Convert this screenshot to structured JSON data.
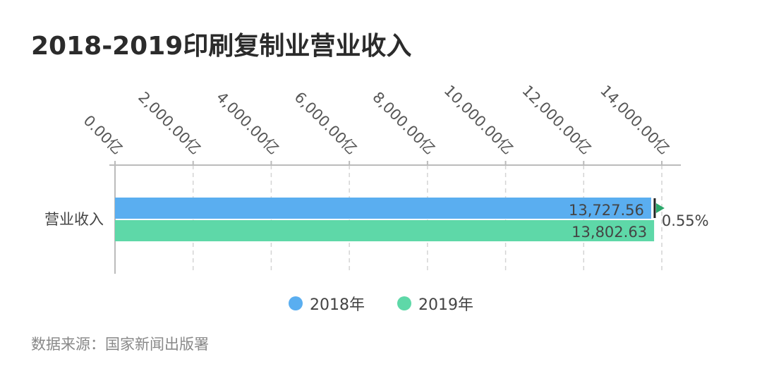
{
  "title": "2018-2019印刷复制业营业收入",
  "source": "数据来源：国家新闻出版署",
  "colors": {
    "series_2018": "#5aaef0",
    "series_2019": "#5ed8a8",
    "change_marker": "#2aa86a",
    "axis": "#bbbbbb"
  },
  "chart_data": {
    "type": "bar",
    "orientation": "horizontal",
    "title": "2018-2019印刷复制业营业收入",
    "categories": [
      "营业收入"
    ],
    "series": [
      {
        "name": "2018年",
        "values": [
          13727.56
        ],
        "labels": [
          "13,727.56"
        ]
      },
      {
        "name": "2019年",
        "values": [
          13802.63
        ],
        "labels": [
          "13,802.63"
        ]
      }
    ],
    "xlim": [
      0,
      14000
    ],
    "x_ticks": [
      0,
      2000,
      4000,
      6000,
      8000,
      10000,
      12000,
      14000
    ],
    "x_tick_labels": [
      "0.00亿",
      "2,000.00亿",
      "4,000.00亿",
      "6,000.00亿",
      "8,000.00亿",
      "10,000.00亿",
      "12,000.00亿",
      "14,000.00亿"
    ],
    "x_axis_position": "top",
    "grid": true,
    "legend": "bottom-center",
    "annotation": "0.55%"
  }
}
